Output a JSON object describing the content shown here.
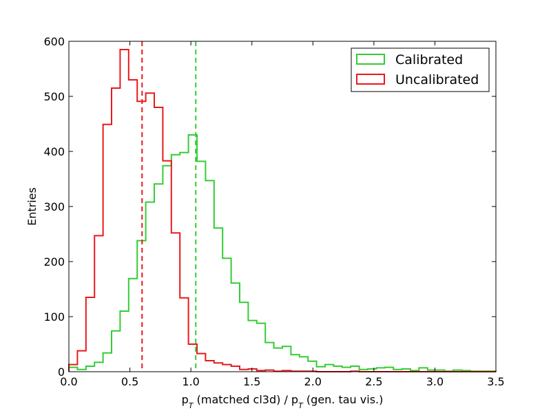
{
  "chart_data": {
    "type": "histogram",
    "xlabel_parts": [
      "p",
      "T",
      " (matched cl3d) / p",
      "T",
      " (gen. tau vis.)"
    ],
    "ylabel": "Entries",
    "xlim": [
      0.0,
      3.5
    ],
    "ylim": [
      0,
      600
    ],
    "xticks": [
      0.0,
      0.5,
      1.0,
      1.5,
      2.0,
      2.5,
      3.0,
      3.5
    ],
    "xtick_labels": [
      "0.0",
      "0.5",
      "1.0",
      "1.5",
      "2.0",
      "2.5",
      "3.0",
      "3.5"
    ],
    "yticks": [
      0,
      100,
      200,
      300,
      400,
      500,
      600
    ],
    "ytick_labels": [
      "0",
      "100",
      "200",
      "300",
      "400",
      "500",
      "600"
    ],
    "grid": false,
    "legend_position": "top-right",
    "bin_edges_start": 0.0,
    "bin_width": 0.07,
    "series": [
      {
        "name": "Calibrated",
        "color": "#33cc33",
        "values": [
          8,
          4,
          10,
          17,
          34,
          74,
          110,
          169,
          238,
          308,
          341,
          374,
          394,
          398,
          430,
          382,
          347,
          261,
          206,
          161,
          126,
          93,
          88,
          53,
          43,
          46,
          31,
          27,
          19,
          9,
          13,
          10,
          8,
          10,
          4,
          5,
          7,
          8,
          4,
          5,
          2,
          7,
          3,
          3,
          1,
          3,
          2,
          1,
          1,
          1
        ],
        "mean_line": 1.04
      },
      {
        "name": "Uncalibrated",
        "color": "#e8181b",
        "values": [
          13,
          38,
          135,
          247,
          449,
          515,
          585,
          530,
          491,
          506,
          480,
          383,
          252,
          134,
          50,
          33,
          20,
          16,
          13,
          10,
          4,
          5,
          2,
          3,
          1,
          2,
          1,
          1,
          1,
          0,
          0,
          0,
          0,
          1,
          0,
          0,
          0,
          0,
          0,
          0,
          0,
          0,
          0,
          0,
          0,
          0,
          0,
          0,
          0,
          0
        ],
        "mean_line": 0.6
      }
    ]
  }
}
